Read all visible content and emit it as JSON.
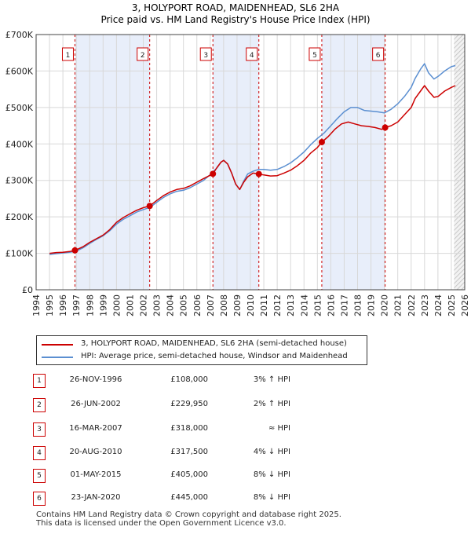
{
  "chart_data": {
    "type": "line",
    "title": "3, HOLYPORT ROAD, MAIDENHEAD, SL6 2HA",
    "subtitle": "Price paid vs. HM Land Registry's House Price Index (HPI)",
    "xlim": [
      1994,
      2026
    ],
    "ylim": [
      0,
      700000
    ],
    "x_ticks": [
      1994,
      1995,
      1996,
      1997,
      1998,
      1999,
      2000,
      2001,
      2002,
      2003,
      2004,
      2005,
      2006,
      2007,
      2008,
      2009,
      2010,
      2011,
      2012,
      2013,
      2014,
      2015,
      2016,
      2017,
      2018,
      2019,
      2020,
      2021,
      2022,
      2023,
      2024,
      2025,
      2026
    ],
    "y_ticks": [
      0,
      100000,
      200000,
      300000,
      400000,
      500000,
      600000,
      700000
    ],
    "y_tick_labels": [
      "£0",
      "£100K",
      "£200K",
      "£300K",
      "£400K",
      "£500K",
      "£600K",
      "£700K"
    ],
    "series": [
      {
        "name": "3, HOLYPORT ROAD, MAIDENHEAD, SL6 2HA (semi-detached house)",
        "color": "#cc0000",
        "x": [
          1995,
          1995.5,
          1996,
          1996.5,
          1996.9,
          1997.5,
          1998,
          1998.5,
          1999,
          1999.5,
          2000,
          2000.5,
          2001,
          2001.5,
          2002,
          2002.48,
          2003,
          2003.5,
          2004,
          2004.5,
          2005,
          2005.5,
          2006,
          2006.5,
          2007.2,
          2007.5,
          2007.8,
          2008,
          2008.3,
          2008.6,
          2008.9,
          2009.2,
          2009.5,
          2009.8,
          2010.2,
          2010.63,
          2011,
          2011.5,
          2012,
          2012.5,
          2013,
          2013.5,
          2014,
          2014.5,
          2015,
          2015.33,
          2015.8,
          2016.3,
          2016.8,
          2017.3,
          2017.8,
          2018.3,
          2018.8,
          2019.3,
          2019.8,
          2020.06,
          2020.5,
          2021,
          2021.5,
          2022,
          2022.3,
          2022.7,
          2023,
          2023.3,
          2023.7,
          2024,
          2024.5,
          2025,
          2025.3
        ],
        "values": [
          100000,
          102000,
          103000,
          105000,
          108000,
          118000,
          130000,
          140000,
          150000,
          165000,
          185000,
          198000,
          208000,
          218000,
          225000,
          229950,
          245000,
          258000,
          268000,
          275000,
          278000,
          285000,
          295000,
          305000,
          318000,
          335000,
          350000,
          355000,
          345000,
          320000,
          290000,
          275000,
          295000,
          310000,
          320000,
          317500,
          315000,
          312000,
          313000,
          320000,
          328000,
          340000,
          355000,
          375000,
          390000,
          405000,
          420000,
          440000,
          455000,
          460000,
          455000,
          450000,
          448000,
          445000,
          440000,
          445000,
          450000,
          460000,
          480000,
          500000,
          525000,
          545000,
          560000,
          545000,
          528000,
          530000,
          545000,
          555000,
          560000
        ]
      },
      {
        "name": "HPI: Average price, semi-detached house, Windsor and Maidenhead",
        "color": "#5b8fd1",
        "x": [
          1995,
          1995.5,
          1996,
          1996.5,
          1997,
          1997.5,
          1998,
          1998.5,
          1999,
          1999.5,
          2000,
          2000.5,
          2001,
          2001.5,
          2002,
          2002.5,
          2003,
          2003.5,
          2004,
          2004.5,
          2005,
          2005.5,
          2006,
          2006.5,
          2007,
          2007.5,
          2007.8,
          2008,
          2008.3,
          2008.6,
          2008.9,
          2009.2,
          2009.5,
          2009.8,
          2010.2,
          2010.6,
          2011,
          2011.5,
          2012,
          2012.5,
          2013,
          2013.5,
          2014,
          2014.5,
          2015,
          2015.5,
          2016,
          2016.5,
          2017,
          2017.5,
          2018,
          2018.5,
          2019,
          2019.5,
          2020,
          2020.5,
          2021,
          2021.5,
          2022,
          2022.3,
          2022.7,
          2023,
          2023.3,
          2023.7,
          2024,
          2024.5,
          2025,
          2025.3
        ],
        "values": [
          97000,
          99000,
          101000,
          103000,
          106000,
          115000,
          127000,
          138000,
          148000,
          162000,
          180000,
          193000,
          203000,
          213000,
          220000,
          226000,
          240000,
          253000,
          263000,
          270000,
          273000,
          280000,
          290000,
          300000,
          316000,
          334000,
          350000,
          355000,
          345000,
          320000,
          290000,
          275000,
          298000,
          318000,
          325000,
          330000,
          330000,
          328000,
          330000,
          338000,
          348000,
          362000,
          378000,
          398000,
          415000,
          430000,
          450000,
          470000,
          488000,
          500000,
          500000,
          492000,
          490000,
          488000,
          485000,
          495000,
          510000,
          530000,
          555000,
          580000,
          605000,
          620000,
          595000,
          578000,
          585000,
          600000,
          612000,
          615000
        ]
      }
    ],
    "sales": [
      {
        "label": "1",
        "x": 1996.9,
        "value": 108000
      },
      {
        "label": "2",
        "x": 2002.48,
        "value": 229950
      },
      {
        "label": "3",
        "x": 2007.2,
        "value": 318000
      },
      {
        "label": "4",
        "x": 2010.63,
        "value": 317500
      },
      {
        "label": "5",
        "x": 2015.33,
        "value": 405000
      },
      {
        "label": "6",
        "x": 2020.06,
        "value": 445000
      }
    ],
    "shaded_intervals": [
      [
        1996.9,
        2002.48
      ],
      [
        2007.2,
        2010.63
      ],
      [
        2015.33,
        2020.06
      ]
    ],
    "hatched_from": 2025.2,
    "colors": {
      "shade": "#e8eefa",
      "price": "#cc0000",
      "hpi": "#5b8fd1",
      "grid": "#d8d8d8"
    }
  },
  "legend": {
    "price_label": "3, HOLYPORT ROAD, MAIDENHEAD, SL6 2HA (semi-detached house)",
    "hpi_label": "HPI: Average price, semi-detached house, Windsor and Maidenhead"
  },
  "sales_table": [
    {
      "num": "1",
      "date": "26-NOV-1996",
      "price": "£108,000",
      "relation": "3% ↑ HPI"
    },
    {
      "num": "2",
      "date": "26-JUN-2002",
      "price": "£229,950",
      "relation": "2% ↑ HPI"
    },
    {
      "num": "3",
      "date": "16-MAR-2007",
      "price": "£318,000",
      "relation": "≈ HPI"
    },
    {
      "num": "4",
      "date": "20-AUG-2010",
      "price": "£317,500",
      "relation": "4% ↓ HPI"
    },
    {
      "num": "5",
      "date": "01-MAY-2015",
      "price": "£405,000",
      "relation": "8% ↓ HPI"
    },
    {
      "num": "6",
      "date": "23-JAN-2020",
      "price": "£445,000",
      "relation": "8% ↓ HPI"
    }
  ],
  "footer": {
    "line1": "Contains HM Land Registry data © Crown copyright and database right 2025.",
    "line2": "This data is licensed under the Open Government Licence v3.0."
  }
}
